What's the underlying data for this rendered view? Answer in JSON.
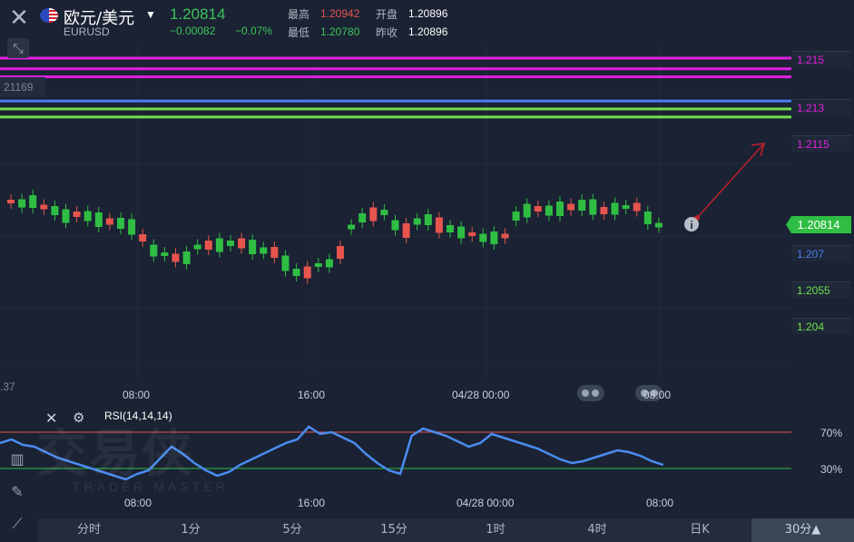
{
  "header": {
    "symbol_title": "欧元/美元",
    "symbol_code": "EURUSD",
    "last_price": "1.20814",
    "change": "−0.00082",
    "change_pct": "−0.07%",
    "high_label": "最高",
    "high_value": "1.20942",
    "low_label": "最低",
    "low_value": "1.20780",
    "open_label": "开盘",
    "open_value": "1.20896",
    "prev_close_label": "昨收",
    "prev_close_value": "1.20896"
  },
  "chart": {
    "partial_left_labels": [
      "21169",
      ".37"
    ],
    "levels": [
      {
        "label": "1.215",
        "value": 1.215,
        "color": "#e020e0"
      },
      {
        "label": "1.213",
        "value": 1.213,
        "color": "#e020e0"
      },
      {
        "label": "1.2115",
        "value": 1.2115,
        "color": "#e020e0"
      },
      {
        "label": "1.207",
        "value": 1.207,
        "color": "#4a7cf0"
      },
      {
        "label": "1.2055",
        "value": 1.2055,
        "color": "#6fe04a"
      },
      {
        "label": "1.204",
        "value": 1.204,
        "color": "#6fe04a"
      }
    ],
    "current_price_tag": "1.20814",
    "time_labels": [
      "08:00",
      "16:00",
      "04/28 00:00",
      "08:00"
    ]
  },
  "rsi": {
    "label": "RSI(14,14,14)",
    "upper_label": "70%",
    "lower_label": "30%",
    "time_labels": [
      "08:00",
      "16:00",
      "04/28 00:00",
      "08:00"
    ]
  },
  "watermark": {
    "main": "交易侠",
    "sub": "TRADER MASTER"
  },
  "timeframes": [
    "分时",
    "1分",
    "5分",
    "15分",
    "1时",
    "4时",
    "日K",
    "30分▲"
  ],
  "colors": {
    "up": "#e8544e",
    "down": "#2fbe43",
    "magenta": "#e020e0",
    "blue": "#4a7cf0",
    "green": "#6fe04a"
  }
}
